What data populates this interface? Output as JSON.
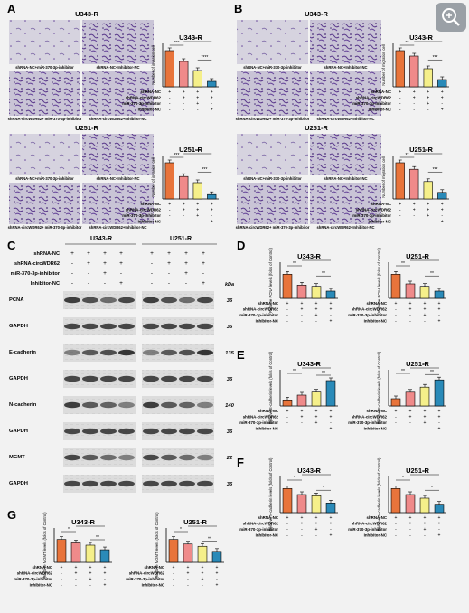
{
  "treatment_labels": [
    "shRNA-NC",
    "shRNA-circWDR62",
    "miR-370-3p-inhibitor",
    "Inhibitor-NC"
  ],
  "treatment_signs": [
    [
      "+",
      "+",
      "+",
      "+"
    ],
    [
      "-",
      "+",
      "+",
      "+"
    ],
    [
      "-",
      "-",
      "+",
      "-"
    ],
    [
      "-",
      "-",
      "-",
      "+"
    ]
  ],
  "bar_colors": [
    "#e8743b",
    "#ef8a8a",
    "#f5ef8a",
    "#2a8ab8"
  ],
  "zoom_icon": "zoom-in-icon",
  "panels": [
    {
      "letter": "A",
      "title1": "U343-R",
      "title2": "U251-R",
      "img_captions": [
        "shRNA-NC+miR-370-3p-inhibitor",
        "shRNA-NC+Inhibitor-NC",
        "shRNA-circWDR62+ miR-370-3p-inhibitor",
        "shRNA-circWDR62+Inhibitor-NC"
      ],
      "ylabel": "Number of invasion cell"
    },
    {
      "letter": "B",
      "title1": "U343-R",
      "title2": "U251-R",
      "img_captions": [
        "shRNA-NC+miR-370-3p-inhibitor",
        "shRNA-NC+Inhibitor-NC",
        "shRNA-circWDR62+ miR-370-3p-inhibitor",
        "shRNA-circWDR62+Inhibitor-NC"
      ],
      "ylabel": "Number of migration cell"
    }
  ],
  "western": {
    "letter": "C",
    "col_headers": [
      "U343-R",
      "U251-R"
    ],
    "kda_label": "kDa",
    "proteins": [
      {
        "name": "PCNA",
        "kda": "36"
      },
      {
        "name": "GAPDH",
        "kda": "36"
      },
      {
        "name": "E-cadherin",
        "kda": "135"
      },
      {
        "name": "GAPDH",
        "kda": "36"
      },
      {
        "name": "N-cadherin",
        "kda": "140"
      },
      {
        "name": "GAPDH",
        "kda": "36"
      },
      {
        "name": "MGMT",
        "kda": "22"
      },
      {
        "name": "GAPDH",
        "kda": "36"
      }
    ]
  },
  "chart_data": [
    {
      "panel": "A",
      "type": "bar",
      "title": "U343-R",
      "ylabel": "Number of invasion cell",
      "categories": [
        "1",
        "2",
        "3",
        "4"
      ],
      "values": [
        100,
        70,
        45,
        15
      ],
      "sig": [
        "***",
        "****",
        "****"
      ]
    },
    {
      "panel": "A",
      "type": "bar",
      "title": "U251-R",
      "ylabel": "Number of invasion cell",
      "categories": [
        "1",
        "2",
        "3",
        "4"
      ],
      "values": [
        100,
        62,
        45,
        12
      ],
      "sig": [
        "***",
        "***",
        "***"
      ]
    },
    {
      "panel": "B",
      "type": "bar",
      "title": "U343-R",
      "ylabel": "Number of migration cell",
      "categories": [
        "1",
        "2",
        "3",
        "4"
      ],
      "values": [
        100,
        85,
        50,
        20
      ],
      "sig": [
        "**",
        "****",
        "***"
      ]
    },
    {
      "panel": "B",
      "type": "bar",
      "title": "U251-R",
      "ylabel": "Number of migration cell",
      "categories": [
        "1",
        "2",
        "3",
        "4"
      ],
      "values": [
        100,
        82,
        48,
        18
      ],
      "sig": [
        "**",
        "****",
        "***"
      ]
    },
    {
      "panel": "D",
      "type": "bar",
      "title": "U343-R",
      "ylabel": "Relative PCNA levels (folds of Control)",
      "categories": [
        "1",
        "2",
        "3",
        "4"
      ],
      "values": [
        1.0,
        0.55,
        0.5,
        0.3
      ],
      "ylim": [
        0,
        1.5
      ],
      "sig": [
        "**",
        "***",
        "**"
      ]
    },
    {
      "panel": "D",
      "type": "bar",
      "title": "U251-R",
      "ylabel": "Relative PCNA levels (folds of Control)",
      "categories": [
        "1",
        "2",
        "3",
        "4"
      ],
      "values": [
        1.0,
        0.6,
        0.5,
        0.3
      ],
      "ylim": [
        0,
        1.5
      ],
      "sig": [
        "**",
        "***",
        "**"
      ]
    },
    {
      "panel": "E",
      "type": "bar",
      "title": "U343-R",
      "ylabel": "Relative E-cadherin levels (folds of Control)",
      "categories": [
        "1",
        "2",
        "3",
        "4"
      ],
      "values": [
        1.0,
        1.8,
        2.3,
        4.2
      ],
      "ylim": [
        0,
        6
      ],
      "sig": [
        "**",
        "***",
        "**"
      ]
    },
    {
      "panel": "E",
      "type": "bar",
      "title": "U251-R",
      "ylabel": "Relative E-cadherin levels (folds of Control)",
      "categories": [
        "1",
        "2",
        "3",
        "4"
      ],
      "values": [
        1.0,
        1.9,
        2.6,
        3.6
      ],
      "ylim": [
        0,
        5
      ],
      "sig": [
        "**",
        "***",
        "**"
      ]
    },
    {
      "panel": "F",
      "type": "bar",
      "title": "U343-R",
      "ylabel": "Relative N-cadherin levels (folds of Control)",
      "categories": [
        "1",
        "2",
        "3",
        "4"
      ],
      "values": [
        1.0,
        0.75,
        0.7,
        0.4
      ],
      "ylim": [
        0,
        1.5
      ],
      "sig": [
        "*",
        "***",
        "*"
      ]
    },
    {
      "panel": "F",
      "type": "bar",
      "title": "U251-R",
      "ylabel": "Relative N-cadherin levels (folds of Control)",
      "categories": [
        "1",
        "2",
        "3",
        "4"
      ],
      "values": [
        1.0,
        0.75,
        0.6,
        0.35
      ],
      "ylim": [
        0,
        1.5
      ],
      "sig": [
        "*",
        "***",
        "*"
      ]
    },
    {
      "panel": "G",
      "type": "bar",
      "title": "U343-R",
      "ylabel": "Relative MGMT levels (folds of Control)",
      "categories": [
        "1",
        "2",
        "3",
        "4"
      ],
      "values": [
        1.0,
        0.85,
        0.75,
        0.55
      ],
      "ylim": [
        0,
        1.5
      ],
      "sig": [
        "*",
        "**",
        "**"
      ]
    },
    {
      "panel": "G",
      "type": "bar",
      "title": "U251-R",
      "ylabel": "Relative MGMT levels (folds of Control)",
      "categories": [
        "1",
        "2",
        "3",
        "4"
      ],
      "values": [
        1.0,
        0.8,
        0.7,
        0.48
      ],
      "ylim": [
        0,
        1.5
      ],
      "sig": [
        "*",
        "**",
        "**"
      ]
    }
  ]
}
